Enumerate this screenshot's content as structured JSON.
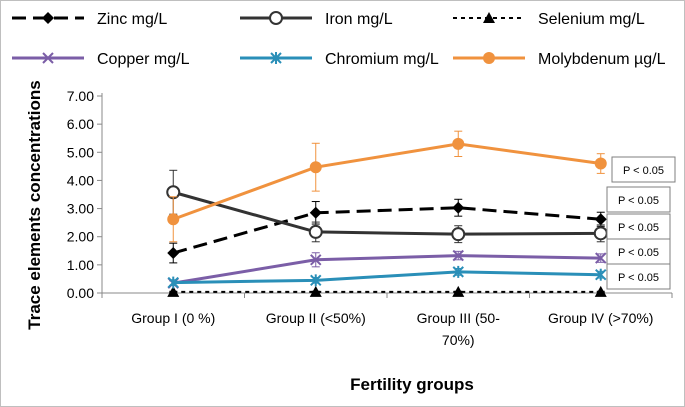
{
  "chart_data": {
    "type": "line",
    "xlabel": "Fertility groups",
    "ylabel": "Trace elements concentrations",
    "ylim": [
      0,
      7
    ],
    "yticks": [
      "0.00",
      "1.00",
      "2.00",
      "3.00",
      "4.00",
      "5.00",
      "6.00",
      "7.00"
    ],
    "categories": [
      [
        "Group I (0 %)"
      ],
      [
        "Group II (<50%)"
      ],
      [
        "Group III (50-",
        "70%)"
      ],
      [
        "Group IV (>70%)"
      ]
    ],
    "series": [
      {
        "name": "Zinc mg/L",
        "color": "#000000",
        "dash": "dashed",
        "marker": "diamond",
        "values": [
          1.42,
          2.85,
          3.03,
          2.62
        ],
        "errors": [
          0.35,
          0.4,
          0.3,
          0.25
        ]
      },
      {
        "name": "Iron mg/L",
        "color": "#333333",
        "dash": "solid",
        "marker": "circle-open",
        "values": [
          3.58,
          2.17,
          2.09,
          2.12
        ],
        "errors": [
          0.78,
          0.35,
          0.3,
          0.3
        ]
      },
      {
        "name": "Selenium mg/L",
        "color": "#000000",
        "dash": "dotted",
        "marker": "triangle",
        "values": [
          0.04,
          0.04,
          0.04,
          0.04
        ],
        "errors": [
          0.02,
          0.02,
          0.02,
          0.02
        ]
      },
      {
        "name": "Copper mg/L",
        "color": "#7b5ea7",
        "dash": "solid",
        "marker": "x",
        "values": [
          0.35,
          1.18,
          1.33,
          1.24
        ],
        "errors": [
          0.08,
          0.25,
          0.15,
          0.15
        ]
      },
      {
        "name": "Chromium mg/L",
        "color": "#2a8fb8",
        "dash": "solid",
        "marker": "asterisk",
        "values": [
          0.37,
          0.45,
          0.75,
          0.65
        ],
        "errors": [
          0.1,
          0.1,
          0.12,
          0.12
        ]
      },
      {
        "name": "Molybdenum µg/L",
        "color": "#f0923e",
        "dash": "solid",
        "marker": "circle-filled",
        "values": [
          2.62,
          4.47,
          5.3,
          4.6
        ],
        "errors": [
          0.8,
          0.85,
          0.45,
          0.35
        ]
      }
    ],
    "annotations": [
      "P < 0.05",
      "P < 0.05",
      "P < 0.05",
      "P < 0.05",
      "P < 0.05"
    ]
  }
}
